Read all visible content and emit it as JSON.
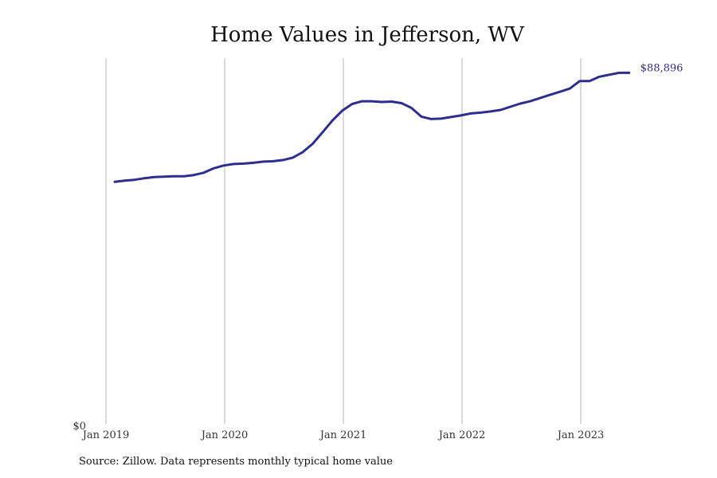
{
  "chart_data": {
    "type": "line",
    "title": "Home Values in Jefferson, WV",
    "xlabel": "",
    "ylabel": "",
    "x_ticks": [
      "Jan 2019",
      "Jan 2020",
      "Jan 2021",
      "Jan 2022",
      "Jan 2023"
    ],
    "y_ticks": [
      "$0"
    ],
    "ylim": [
      0,
      92000
    ],
    "grid": "vertical",
    "line_color": "#2e2e8f",
    "end_label": "$88,896",
    "series": [
      {
        "x": [
          "2019-01",
          "2019-02",
          "2019-03",
          "2019-04",
          "2019-05",
          "2019-06",
          "2019-07",
          "2019-08",
          "2019-09",
          "2019-10",
          "2019-11",
          "2019-12",
          "2020-01",
          "2020-02",
          "2020-03",
          "2020-04",
          "2020-05",
          "2020-06",
          "2020-07",
          "2020-08",
          "2020-09",
          "2020-10",
          "2020-11",
          "2020-12",
          "2021-01",
          "2021-02",
          "2021-03",
          "2021-04",
          "2021-05",
          "2021-06",
          "2021-07",
          "2021-08",
          "2021-09",
          "2021-10",
          "2021-11",
          "2021-12",
          "2022-01",
          "2022-02",
          "2022-03",
          "2022-04",
          "2022-05",
          "2022-06",
          "2022-07",
          "2022-08",
          "2022-09",
          "2022-10",
          "2022-11",
          "2022-12",
          "2023-01",
          "2023-02",
          "2023-03",
          "2023-04",
          "2023-05"
        ],
        "values": [
          61300,
          61600,
          61800,
          62200,
          62500,
          62600,
          62700,
          62700,
          63000,
          63600,
          64700,
          65400,
          65800,
          65900,
          66100,
          66400,
          66500,
          66800,
          67400,
          68800,
          70900,
          73800,
          76800,
          79300,
          81000,
          81700,
          81700,
          81500,
          81600,
          81200,
          80000,
          77800,
          77200,
          77300,
          77700,
          78100,
          78600,
          78800,
          79100,
          79500,
          80300,
          81100,
          81700,
          82500,
          83300,
          84100,
          84900,
          86800,
          86800,
          87900,
          88400,
          88896,
          88896
        ]
      }
    ]
  },
  "source_text": "Source: Zillow. Data represents monthly typical home value"
}
